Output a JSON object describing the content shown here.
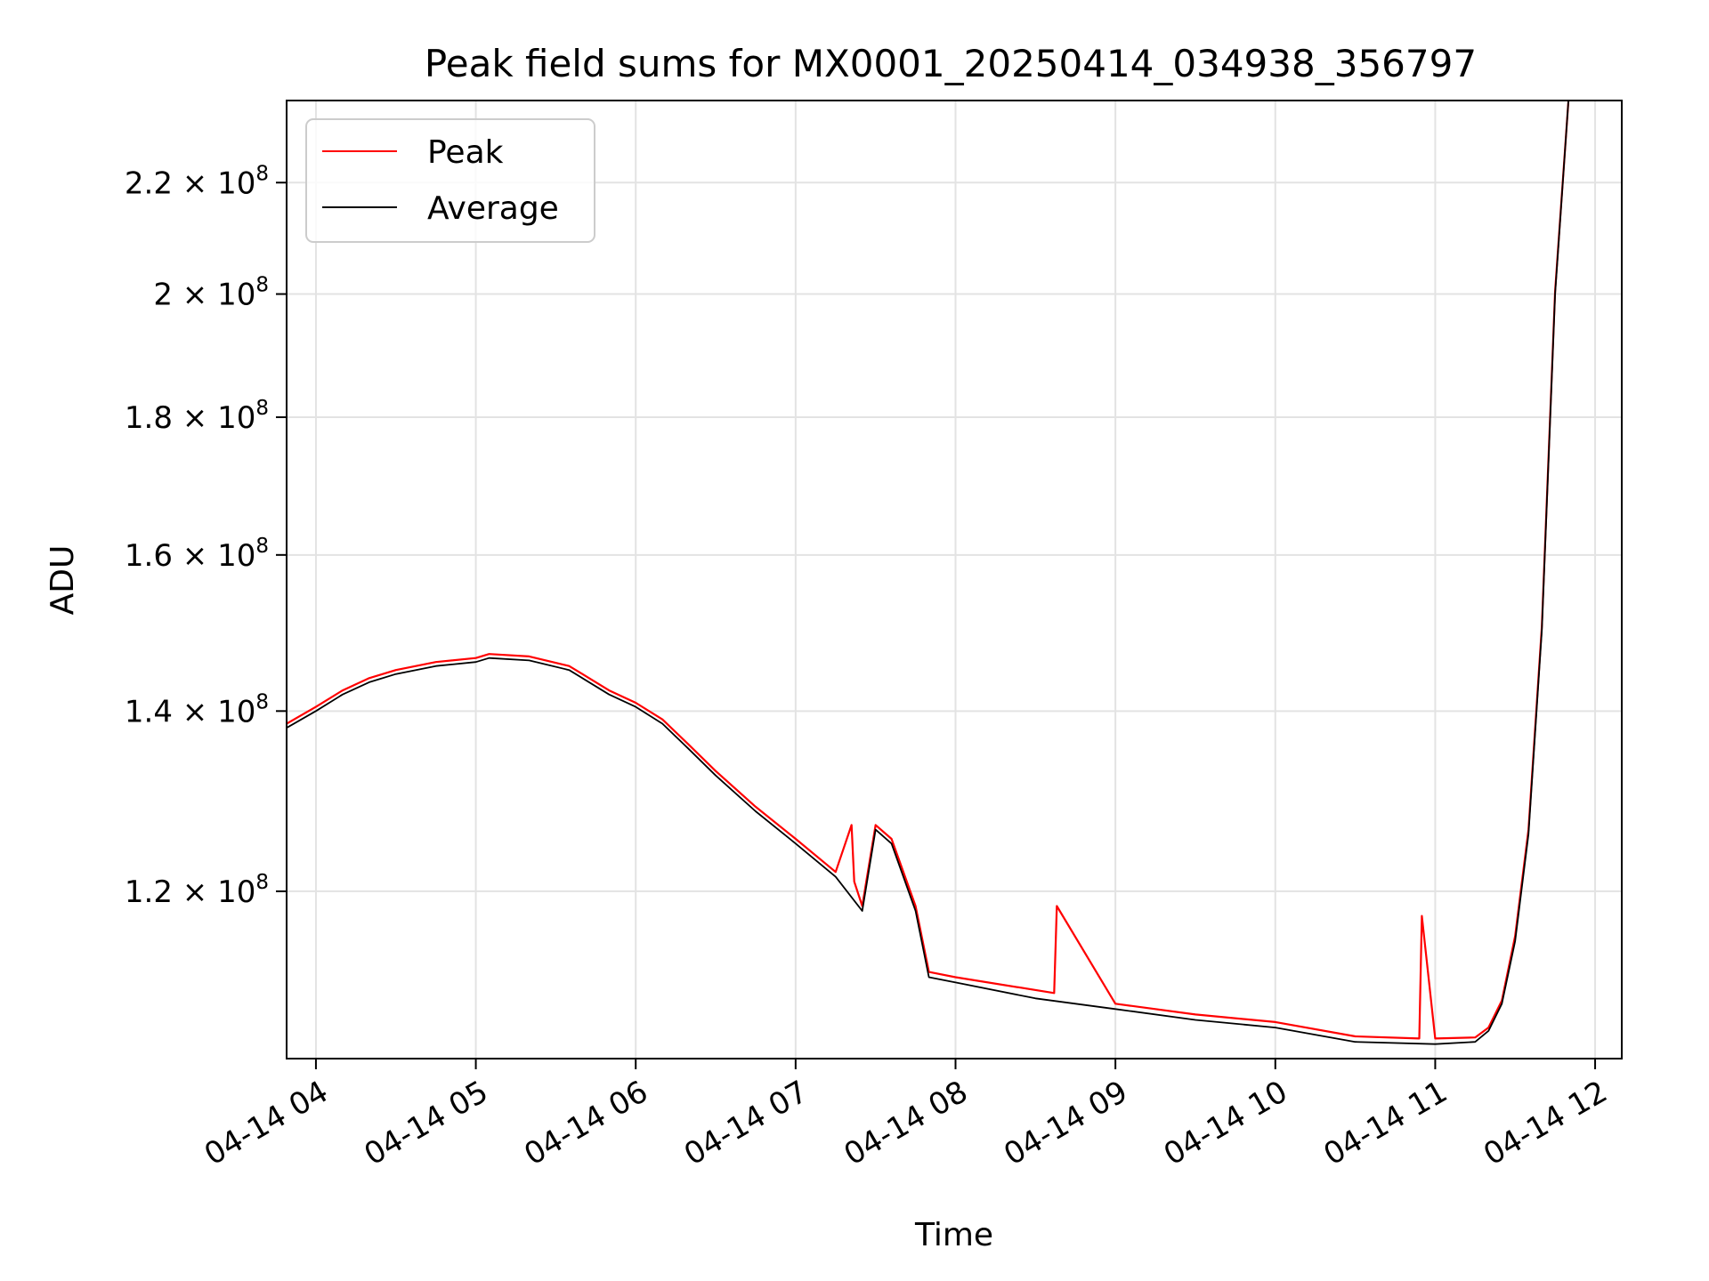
{
  "chart_data": {
    "type": "line",
    "title": "Peak field sums for MX0001_20250414_034938_356797",
    "xlabel": "Time",
    "ylabel": "ADU",
    "x_ticks": [
      "04-14 04",
      "04-14 05",
      "04-14 06",
      "04-14 07",
      "04-14 08",
      "04-14 09",
      "04-14 10",
      "04-14 11",
      "04-14 12"
    ],
    "xlim": [
      "2025-04-14 03:49",
      "2025-04-14 12:10"
    ],
    "y_scale": "log",
    "ylim": [
      104000000,
      236000000
    ],
    "y_ticks": [
      {
        "value": 120000000,
        "mantissa": "1.2",
        "base": "10",
        "exp": "8"
      },
      {
        "value": 140000000,
        "mantissa": "1.4",
        "base": "10",
        "exp": "8"
      },
      {
        "value": 160000000,
        "mantissa": "1.6",
        "base": "10",
        "exp": "8"
      },
      {
        "value": 180000000,
        "mantissa": "1.8",
        "base": "10",
        "exp": "8"
      },
      {
        "value": 200000000,
        "mantissa": "2",
        "base": "10",
        "exp": "8"
      },
      {
        "value": 220000000,
        "mantissa": "2.2",
        "base": "10",
        "exp": "8"
      }
    ],
    "grid": true,
    "legend": {
      "position": "top-left"
    },
    "series": [
      {
        "name": "Average",
        "color": "#000000",
        "x": [
          "2025-04-14 03:49",
          "2025-04-14 04:00",
          "2025-04-14 04:10",
          "2025-04-14 04:20",
          "2025-04-14 04:30",
          "2025-04-14 04:45",
          "2025-04-14 05:00",
          "2025-04-14 05:05",
          "2025-04-14 05:20",
          "2025-04-14 05:35",
          "2025-04-14 05:40",
          "2025-04-14 05:50",
          "2025-04-14 06:00",
          "2025-04-14 06:10",
          "2025-04-14 06:20",
          "2025-04-14 06:30",
          "2025-04-14 06:45",
          "2025-04-14 07:00",
          "2025-04-14 07:15",
          "2025-04-14 07:25",
          "2025-04-14 07:30",
          "2025-04-14 07:36",
          "2025-04-14 07:45",
          "2025-04-14 07:50",
          "2025-04-14 08:00",
          "2025-04-14 08:30",
          "2025-04-14 09:00",
          "2025-04-14 09:30",
          "2025-04-14 10:00",
          "2025-04-14 10:30",
          "2025-04-14 11:00",
          "2025-04-14 11:15",
          "2025-04-14 11:20",
          "2025-04-14 11:25",
          "2025-04-14 11:30",
          "2025-04-14 11:35",
          "2025-04-14 11:40",
          "2025-04-14 11:45",
          "2025-04-14 11:50"
        ],
        "y": [
          138000000,
          140000000,
          142000000,
          143500000,
          144500000,
          145500000,
          146000000,
          146500000,
          146200000,
          145000000,
          144000000,
          142000000,
          140500000,
          138500000,
          135500000,
          132500000,
          128500000,
          125000000,
          121500000,
          118000000,
          126500000,
          125000000,
          118000000,
          111500000,
          111000000,
          109500000,
          108500000,
          107500000,
          106800000,
          105500000,
          105300000,
          105500000,
          106500000,
          109000000,
          115000000,
          126000000,
          150000000,
          200000000,
          236000000
        ]
      },
      {
        "name": "Peak",
        "color": "#ff0000",
        "x": [
          "2025-04-14 03:49",
          "2025-04-14 04:00",
          "2025-04-14 04:10",
          "2025-04-14 04:20",
          "2025-04-14 04:30",
          "2025-04-14 04:45",
          "2025-04-14 05:00",
          "2025-04-14 05:05",
          "2025-04-14 05:20",
          "2025-04-14 05:35",
          "2025-04-14 05:40",
          "2025-04-14 05:50",
          "2025-04-14 06:00",
          "2025-04-14 06:10",
          "2025-04-14 06:20",
          "2025-04-14 06:30",
          "2025-04-14 06:45",
          "2025-04-14 07:00",
          "2025-04-14 07:15",
          "2025-04-14 07:21",
          "2025-04-14 07:22",
          "2025-04-14 07:25",
          "2025-04-14 07:30",
          "2025-04-14 07:36",
          "2025-04-14 07:45",
          "2025-04-14 07:50",
          "2025-04-14 08:00",
          "2025-04-14 08:37",
          "2025-04-14 08:38",
          "2025-04-14 09:00",
          "2025-04-14 09:30",
          "2025-04-14 10:00",
          "2025-04-14 10:30",
          "2025-04-14 10:54",
          "2025-04-14 10:55",
          "2025-04-14 11:00",
          "2025-04-14 11:15",
          "2025-04-14 11:20",
          "2025-04-14 11:25",
          "2025-04-14 11:30",
          "2025-04-14 11:35",
          "2025-04-14 11:40",
          "2025-04-14 11:45",
          "2025-04-14 11:50"
        ],
        "y": [
          138500000,
          140500000,
          142500000,
          144000000,
          145000000,
          146000000,
          146500000,
          147000000,
          146700000,
          145500000,
          144500000,
          142500000,
          141000000,
          139000000,
          136000000,
          133000000,
          129000000,
          125500000,
          122000000,
          127000000,
          121000000,
          118500000,
          127000000,
          125500000,
          118500000,
          112000000,
          111500000,
          110000000,
          118500000,
          109000000,
          108000000,
          107300000,
          106000000,
          105800000,
          117500000,
          105800000,
          105900000,
          106800000,
          109300000,
          115500000,
          126500000,
          150500000,
          200500000,
          236000000
        ]
      }
    ]
  }
}
